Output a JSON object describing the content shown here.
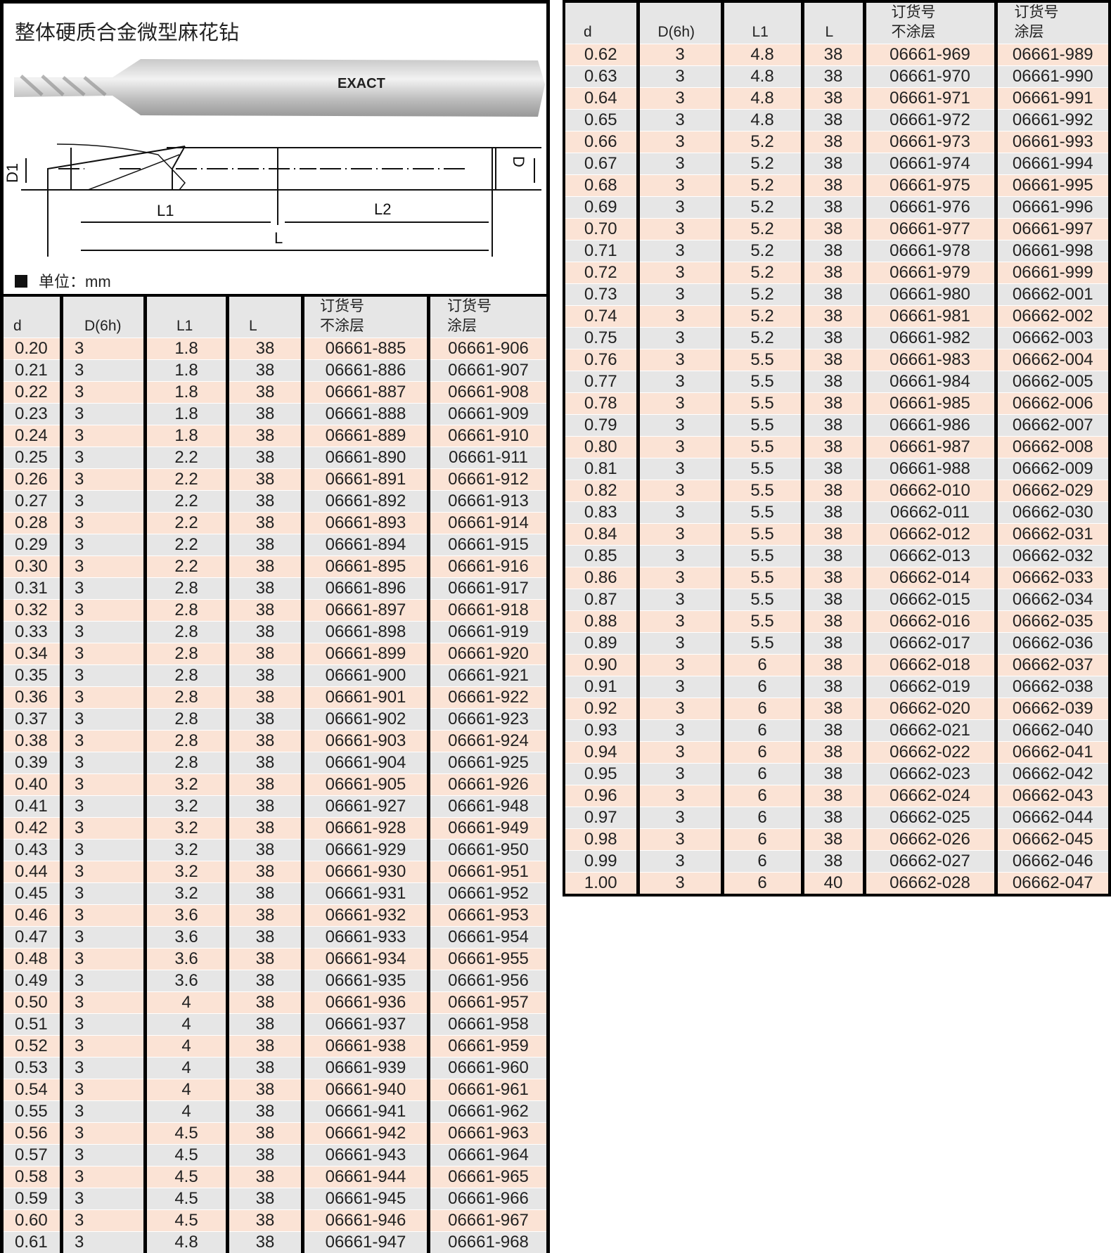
{
  "title": "整体硬质合金微型麻花钻",
  "brand_mark": "EXACT",
  "diagram_labels": {
    "d1": "D1",
    "d": "D",
    "l1": "L1",
    "l2": "L2",
    "l": "L"
  },
  "unit_label": "单位：mm",
  "headers": {
    "d": "d",
    "D": "D(6h)",
    "L1": "L1",
    "L": "L",
    "uncoated_1": "订货号",
    "uncoated_2": "不涂层",
    "coated_1": "订货号",
    "coated_2": "涂层"
  },
  "colors": {
    "row_peach": "#fbe3d5",
    "row_gray": "#e6e6e6",
    "border": "#000000"
  },
  "left_table": [
    [
      "0.20",
      "3",
      "1.8",
      "38",
      "06661-885",
      "06661-906"
    ],
    [
      "0.21",
      "3",
      "1.8",
      "38",
      "06661-886",
      "06661-907"
    ],
    [
      "0.22",
      "3",
      "1.8",
      "38",
      "06661-887",
      "06661-908"
    ],
    [
      "0.23",
      "3",
      "1.8",
      "38",
      "06661-888",
      "06661-909"
    ],
    [
      "0.24",
      "3",
      "1.8",
      "38",
      "06661-889",
      "06661-910"
    ],
    [
      "0.25",
      "3",
      "2.2",
      "38",
      "06661-890",
      "06661-911"
    ],
    [
      "0.26",
      "3",
      "2.2",
      "38",
      "06661-891",
      "06661-912"
    ],
    [
      "0.27",
      "3",
      "2.2",
      "38",
      "06661-892",
      "06661-913"
    ],
    [
      "0.28",
      "3",
      "2.2",
      "38",
      "06661-893",
      "06661-914"
    ],
    [
      "0.29",
      "3",
      "2.2",
      "38",
      "06661-894",
      "06661-915"
    ],
    [
      "0.30",
      "3",
      "2.2",
      "38",
      "06661-895",
      "06661-916"
    ],
    [
      "0.31",
      "3",
      "2.8",
      "38",
      "06661-896",
      "06661-917"
    ],
    [
      "0.32",
      "3",
      "2.8",
      "38",
      "06661-897",
      "06661-918"
    ],
    [
      "0.33",
      "3",
      "2.8",
      "38",
      "06661-898",
      "06661-919"
    ],
    [
      "0.34",
      "3",
      "2.8",
      "38",
      "06661-899",
      "06661-920"
    ],
    [
      "0.35",
      "3",
      "2.8",
      "38",
      "06661-900",
      "06661-921"
    ],
    [
      "0.36",
      "3",
      "2.8",
      "38",
      "06661-901",
      "06661-922"
    ],
    [
      "0.37",
      "3",
      "2.8",
      "38",
      "06661-902",
      "06661-923"
    ],
    [
      "0.38",
      "3",
      "2.8",
      "38",
      "06661-903",
      "06661-924"
    ],
    [
      "0.39",
      "3",
      "2.8",
      "38",
      "06661-904",
      "06661-925"
    ],
    [
      "0.40",
      "3",
      "3.2",
      "38",
      "06661-905",
      "06661-926"
    ],
    [
      "0.41",
      "3",
      "3.2",
      "38",
      "06661-927",
      "06661-948"
    ],
    [
      "0.42",
      "3",
      "3.2",
      "38",
      "06661-928",
      "06661-949"
    ],
    [
      "0.43",
      "3",
      "3.2",
      "38",
      "06661-929",
      "06661-950"
    ],
    [
      "0.44",
      "3",
      "3.2",
      "38",
      "06661-930",
      "06661-951"
    ],
    [
      "0.45",
      "3",
      "3.2",
      "38",
      "06661-931",
      "06661-952"
    ],
    [
      "0.46",
      "3",
      "3.6",
      "38",
      "06661-932",
      "06661-953"
    ],
    [
      "0.47",
      "3",
      "3.6",
      "38",
      "06661-933",
      "06661-954"
    ],
    [
      "0.48",
      "3",
      "3.6",
      "38",
      "06661-934",
      "06661-955"
    ],
    [
      "0.49",
      "3",
      "3.6",
      "38",
      "06661-935",
      "06661-956"
    ],
    [
      "0.50",
      "3",
      "4",
      "38",
      "06661-936",
      "06661-957"
    ],
    [
      "0.51",
      "3",
      "4",
      "38",
      "06661-937",
      "06661-958"
    ],
    [
      "0.52",
      "3",
      "4",
      "38",
      "06661-938",
      "06661-959"
    ],
    [
      "0.53",
      "3",
      "4",
      "38",
      "06661-939",
      "06661-960"
    ],
    [
      "0.54",
      "3",
      "4",
      "38",
      "06661-940",
      "06661-961"
    ],
    [
      "0.55",
      "3",
      "4",
      "38",
      "06661-941",
      "06661-962"
    ],
    [
      "0.56",
      "3",
      "4.5",
      "38",
      "06661-942",
      "06661-963"
    ],
    [
      "0.57",
      "3",
      "4.5",
      "38",
      "06661-943",
      "06661-964"
    ],
    [
      "0.58",
      "3",
      "4.5",
      "38",
      "06661-944",
      "06661-965"
    ],
    [
      "0.59",
      "3",
      "4.5",
      "38",
      "06661-945",
      "06661-966"
    ],
    [
      "0.60",
      "3",
      "4.5",
      "38",
      "06661-946",
      "06661-967"
    ],
    [
      "0.61",
      "3",
      "4.8",
      "38",
      "06661-947",
      "06661-968"
    ]
  ],
  "right_table": [
    [
      "0.62",
      "3",
      "4.8",
      "38",
      "06661-969",
      "06661-989"
    ],
    [
      "0.63",
      "3",
      "4.8",
      "38",
      "06661-970",
      "06661-990"
    ],
    [
      "0.64",
      "3",
      "4.8",
      "38",
      "06661-971",
      "06661-991"
    ],
    [
      "0.65",
      "3",
      "4.8",
      "38",
      "06661-972",
      "06661-992"
    ],
    [
      "0.66",
      "3",
      "5.2",
      "38",
      "06661-973",
      "06661-993"
    ],
    [
      "0.67",
      "3",
      "5.2",
      "38",
      "06661-974",
      "06661-994"
    ],
    [
      "0.68",
      "3",
      "5.2",
      "38",
      "06661-975",
      "06661-995"
    ],
    [
      "0.69",
      "3",
      "5.2",
      "38",
      "06661-976",
      "06661-996"
    ],
    [
      "0.70",
      "3",
      "5.2",
      "38",
      "06661-977",
      "06661-997"
    ],
    [
      "0.71",
      "3",
      "5.2",
      "38",
      "06661-978",
      "06661-998"
    ],
    [
      "0.72",
      "3",
      "5.2",
      "38",
      "06661-979",
      "06661-999"
    ],
    [
      "0.73",
      "3",
      "5.2",
      "38",
      "06661-980",
      "06662-001"
    ],
    [
      "0.74",
      "3",
      "5.2",
      "38",
      "06661-981",
      "06662-002"
    ],
    [
      "0.75",
      "3",
      "5.2",
      "38",
      "06661-982",
      "06662-003"
    ],
    [
      "0.76",
      "3",
      "5.5",
      "38",
      "06661-983",
      "06662-004"
    ],
    [
      "0.77",
      "3",
      "5.5",
      "38",
      "06661-984",
      "06662-005"
    ],
    [
      "0.78",
      "3",
      "5.5",
      "38",
      "06661-985",
      "06662-006"
    ],
    [
      "0.79",
      "3",
      "5.5",
      "38",
      "06661-986",
      "06662-007"
    ],
    [
      "0.80",
      "3",
      "5.5",
      "38",
      "06661-987",
      "06662-008"
    ],
    [
      "0.81",
      "3",
      "5.5",
      "38",
      "06661-988",
      "06662-009"
    ],
    [
      "0.82",
      "3",
      "5.5",
      "38",
      "06662-010",
      "06662-029"
    ],
    [
      "0.83",
      "3",
      "5.5",
      "38",
      "06662-011",
      "06662-030"
    ],
    [
      "0.84",
      "3",
      "5.5",
      "38",
      "06662-012",
      "06662-031"
    ],
    [
      "0.85",
      "3",
      "5.5",
      "38",
      "06662-013",
      "06662-032"
    ],
    [
      "0.86",
      "3",
      "5.5",
      "38",
      "06662-014",
      "06662-033"
    ],
    [
      "0.87",
      "3",
      "5.5",
      "38",
      "06662-015",
      "06662-034"
    ],
    [
      "0.88",
      "3",
      "5.5",
      "38",
      "06662-016",
      "06662-035"
    ],
    [
      "0.89",
      "3",
      "5.5",
      "38",
      "06662-017",
      "06662-036"
    ],
    [
      "0.90",
      "3",
      "6",
      "38",
      "06662-018",
      "06662-037"
    ],
    [
      "0.91",
      "3",
      "6",
      "38",
      "06662-019",
      "06662-038"
    ],
    [
      "0.92",
      "3",
      "6",
      "38",
      "06662-020",
      "06662-039"
    ],
    [
      "0.93",
      "3",
      "6",
      "38",
      "06662-021",
      "06662-040"
    ],
    [
      "0.94",
      "3",
      "6",
      "38",
      "06662-022",
      "06662-041"
    ],
    [
      "0.95",
      "3",
      "6",
      "38",
      "06662-023",
      "06662-042"
    ],
    [
      "0.96",
      "3",
      "6",
      "38",
      "06662-024",
      "06662-043"
    ],
    [
      "0.97",
      "3",
      "6",
      "38",
      "06662-025",
      "06662-044"
    ],
    [
      "0.98",
      "3",
      "6",
      "38",
      "06662-026",
      "06662-045"
    ],
    [
      "0.99",
      "3",
      "6",
      "38",
      "06662-027",
      "06662-046"
    ],
    [
      "1.00",
      "3",
      "6",
      "40",
      "06662-028",
      "06662-047"
    ]
  ]
}
